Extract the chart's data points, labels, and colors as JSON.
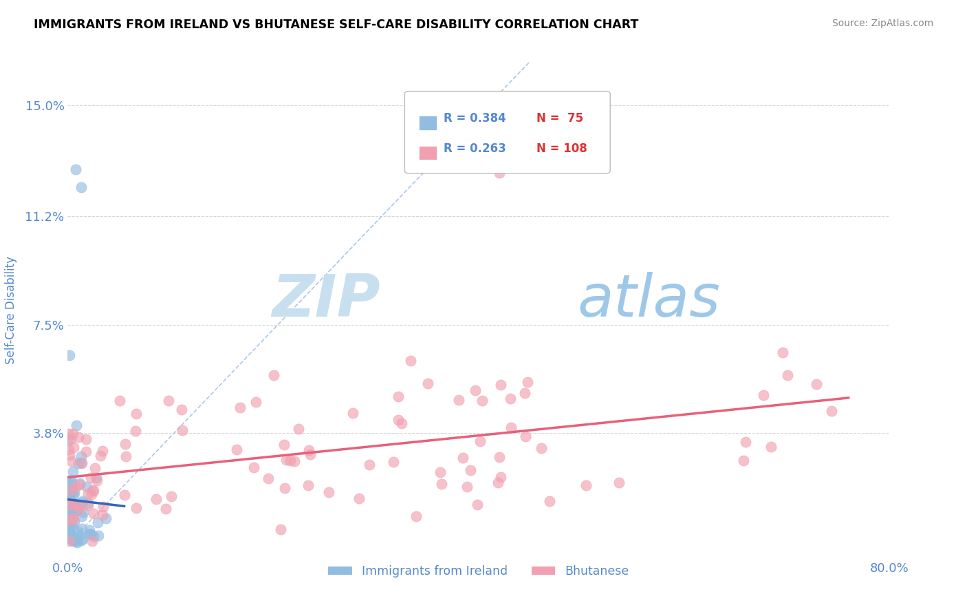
{
  "title": "IMMIGRANTS FROM IRELAND VS BHUTANESE SELF-CARE DISABILITY CORRELATION CHART",
  "source": "Source: ZipAtlas.com",
  "ylabel": "Self-Care Disability",
  "xlim": [
    0.0,
    0.8
  ],
  "ylim": [
    -0.005,
    0.165
  ],
  "ytick_vals": [
    0.0,
    0.038,
    0.075,
    0.112,
    0.15
  ],
  "ytick_labels": [
    "",
    "3.8%",
    "7.5%",
    "11.2%",
    "15.0%"
  ],
  "legend_r1": "R = 0.384",
  "legend_n1": "N =  75",
  "legend_r2": "R = 0.263",
  "legend_n2": "N = 108",
  "color_ireland": "#92bce0",
  "color_bhutan": "#f0a0b0",
  "color_ireland_line": "#3366bb",
  "color_bhutan_line": "#e8607a",
  "color_ref_line": "#aac8e8",
  "color_title": "#000000",
  "color_axis_label": "#5588cc",
  "color_tick_labels": "#5588cc",
  "color_source": "#888888",
  "color_grid": "#cccccc",
  "color_legend_r": "#5588cc",
  "color_legend_n": "#dd3333",
  "watermark_zip": "ZIP",
  "watermark_atlas": "atlas",
  "background_color": "#ffffff",
  "watermark_color": "#d8eaf8",
  "figsize": [
    14.06,
    8.92
  ],
  "dpi": 100
}
